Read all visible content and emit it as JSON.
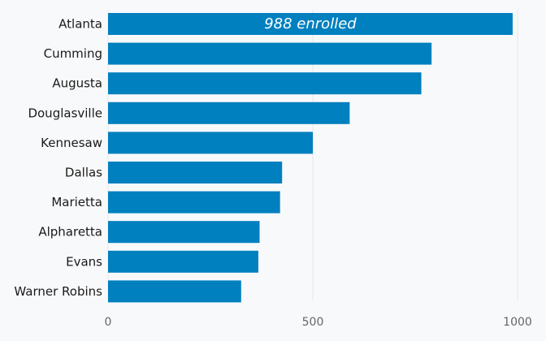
{
  "chart_data": {
    "type": "bar",
    "orientation": "horizontal",
    "categories": [
      "Atlanta",
      "Cumming",
      "Augusta",
      "Douglasville",
      "Kennesaw",
      "Dallas",
      "Marietta",
      "Alpharetta",
      "Evans",
      "Warner Robins"
    ],
    "values": [
      988,
      790,
      765,
      590,
      500,
      425,
      420,
      370,
      367,
      325
    ],
    "xlim": [
      0,
      1000
    ],
    "xticks": [
      0,
      500,
      1000
    ],
    "grid": true,
    "annotation": {
      "category": "Atlanta",
      "text": "988 enrolled"
    },
    "colors": {
      "bar": "#0080bf",
      "grid": "#e6e8ec",
      "background": "#f8f9fb"
    }
  }
}
